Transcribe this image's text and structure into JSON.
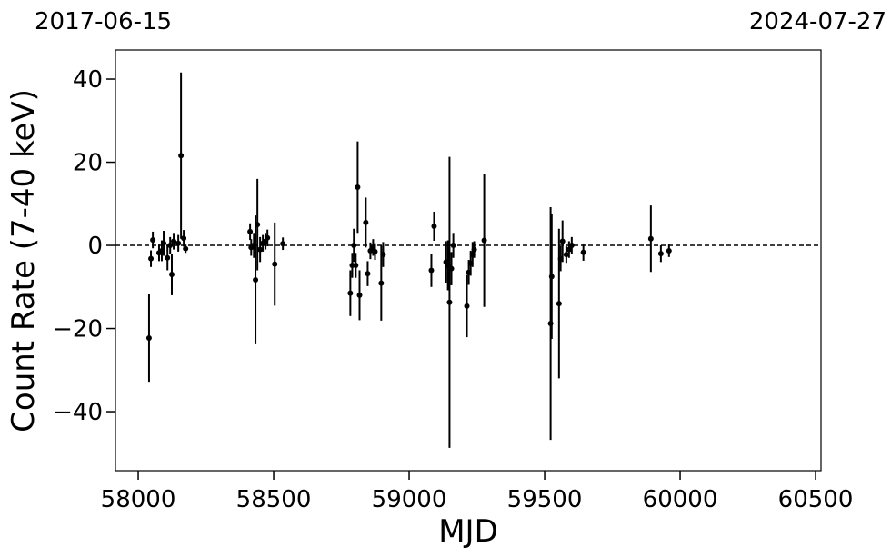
{
  "chart_data": {
    "type": "errorbar",
    "top_labels": [
      "2017-06-15",
      "2024-07-27"
    ],
    "x_label": "MJD",
    "y_label": "Count Rate (7-40 keV)",
    "color": "#000000",
    "hline": 0,
    "xlim": [
      57916,
      60520
    ],
    "ylim": [
      -54.2,
      47
    ],
    "xticks": [
      58000,
      58500,
      59000,
      59500,
      60000,
      60500
    ],
    "yticks": [
      {
        "value": -40,
        "label": "−40"
      },
      {
        "value": -20,
        "label": "−20"
      },
      0,
      20,
      40
    ],
    "x": [
      58040,
      58047,
      58054,
      58077,
      58087,
      58094,
      58108,
      58118,
      58124,
      58131,
      58148,
      58158,
      58168,
      58175,
      58413,
      58417,
      58427,
      58433,
      58440,
      58450,
      58460,
      58470,
      58477,
      58504,
      58534,
      58783,
      58790,
      58796,
      58803,
      58810,
      58817,
      58840,
      58847,
      58857,
      58867,
      58874,
      58897,
      58904,
      59082,
      59092,
      59136,
      59143,
      59149,
      59156,
      59163,
      59213,
      59220,
      59227,
      59234,
      59240,
      59277,
      59522,
      59526,
      59553,
      59559,
      59566,
      59580,
      59590,
      59600,
      59643,
      59892,
      59929,
      59959
    ],
    "values": [
      -22.3,
      -3.2,
      1.3,
      -1.8,
      -1.3,
      0.5,
      -3,
      0,
      -7,
      1,
      0.5,
      21.6,
      1.7,
      -0.8,
      3.3,
      -0.5,
      0,
      -8.3,
      5,
      -1,
      0.5,
      1,
      1.8,
      -4.5,
      0.4,
      -11.5,
      -4.8,
      0,
      -4.8,
      14,
      -12,
      5.5,
      -6.8,
      -1.3,
      -0.5,
      -1.5,
      -9.1,
      -2.2,
      -6,
      4.6,
      -4,
      -4.8,
      -13.7,
      -5.6,
      0,
      -14.6,
      -6.5,
      -4.3,
      -2.2,
      -1,
      1.2,
      -18.8,
      -7.5,
      -14,
      -3.2,
      1,
      -2.2,
      -1,
      0,
      -1.7,
      1.6,
      -2,
      -1.3
    ],
    "errors": [
      10.5,
      2,
      2,
      2,
      2.5,
      3,
      3,
      2,
      5,
      2,
      2,
      20,
      2,
      1,
      2,
      2,
      3,
      15.5,
      11,
      3,
      2,
      2,
      2,
      10,
      1.5,
      5.5,
      3,
      4,
      3,
      11,
      6,
      6,
      3,
      2,
      2,
      2,
      9,
      3,
      4,
      3.5,
      5,
      6,
      35,
      4,
      3,
      7.5,
      3,
      3,
      3,
      2,
      16,
      28,
      15,
      18,
      3,
      5,
      2,
      2,
      2,
      2,
      8,
      2,
      1.5
    ]
  }
}
